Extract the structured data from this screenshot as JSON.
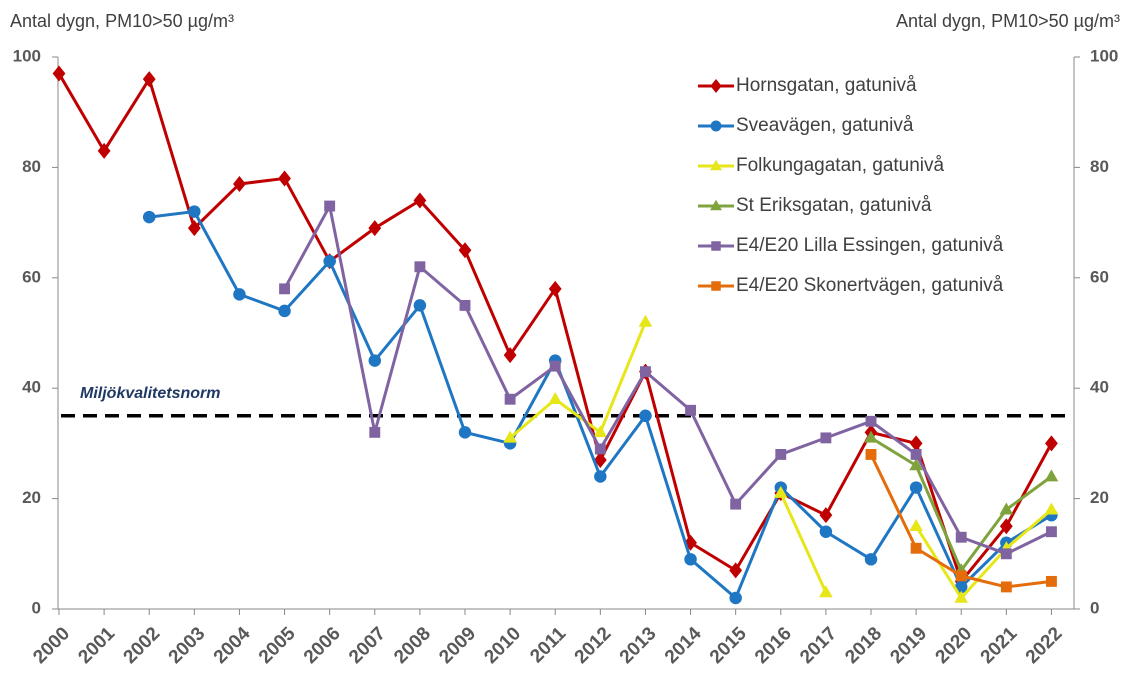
{
  "chart_data": {
    "type": "line",
    "y_label": "Antal dygn, PM10>50 µg/m³",
    "y2_label": "Antal dygn, PM10>50 µg/m³",
    "x": [
      2000,
      2001,
      2002,
      2003,
      2004,
      2005,
      2006,
      2007,
      2008,
      2009,
      2010,
      2011,
      2012,
      2013,
      2014,
      2015,
      2016,
      2017,
      2018,
      2019,
      2020,
      2021,
      2022
    ],
    "xlim": [
      2000,
      2022.5
    ],
    "ylim": [
      0,
      100
    ],
    "yticks": [
      0,
      20,
      40,
      60,
      80,
      100
    ],
    "y2lim": [
      0,
      100
    ],
    "y2ticks": [
      0,
      20,
      40,
      60,
      80,
      100
    ],
    "legend": "top-right",
    "threshold": {
      "value": 35,
      "label": "Miljökvalitetsnorm",
      "color": "#000000"
    },
    "series": [
      {
        "name": "Hornsgatan, gatunivå",
        "color": "#c00000",
        "marker": "diamond",
        "values": [
          97,
          83,
          96,
          69,
          77,
          78,
          63,
          69,
          74,
          65,
          46,
          58,
          27,
          43,
          12,
          7,
          21,
          17,
          32,
          30,
          5,
          15,
          30
        ]
      },
      {
        "name": "Sveavägen, gatunivå",
        "color": "#1f77c4",
        "marker": "circle",
        "values": [
          null,
          null,
          71,
          72,
          57,
          54,
          63,
          45,
          55,
          32,
          30,
          45,
          24,
          35,
          9,
          2,
          22,
          14,
          9,
          22,
          4,
          12,
          17
        ]
      },
      {
        "name": "Folkungagatan, gatunivå",
        "color": "#e6e619",
        "marker": "triangle",
        "values": [
          null,
          null,
          null,
          null,
          null,
          null,
          null,
          null,
          null,
          null,
          31,
          38,
          32,
          52,
          null,
          null,
          21,
          3,
          null,
          15,
          2,
          11,
          18
        ]
      },
      {
        "name": "St Eriksgatan, gatunivå",
        "color": "#7fa33c",
        "marker": "triangle",
        "values": [
          null,
          null,
          null,
          null,
          null,
          null,
          null,
          null,
          null,
          null,
          null,
          null,
          null,
          null,
          null,
          null,
          null,
          null,
          31,
          26,
          7,
          18,
          24
        ]
      },
      {
        "name": "E4/E20 Lilla Essingen, gatunivå",
        "color": "#8064a2",
        "marker": "square",
        "values": [
          null,
          null,
          null,
          null,
          null,
          58,
          73,
          32,
          62,
          55,
          38,
          44,
          29,
          43,
          36,
          19,
          28,
          31,
          34,
          28,
          13,
          10,
          14
        ]
      },
      {
        "name": "E4/E20 Skonertvägen, gatunivå",
        "color": "#e46c0a",
        "marker": "square",
        "values": [
          null,
          null,
          null,
          null,
          null,
          null,
          null,
          null,
          null,
          null,
          null,
          null,
          null,
          null,
          null,
          null,
          null,
          null,
          28,
          11,
          6,
          4,
          5
        ]
      }
    ]
  }
}
